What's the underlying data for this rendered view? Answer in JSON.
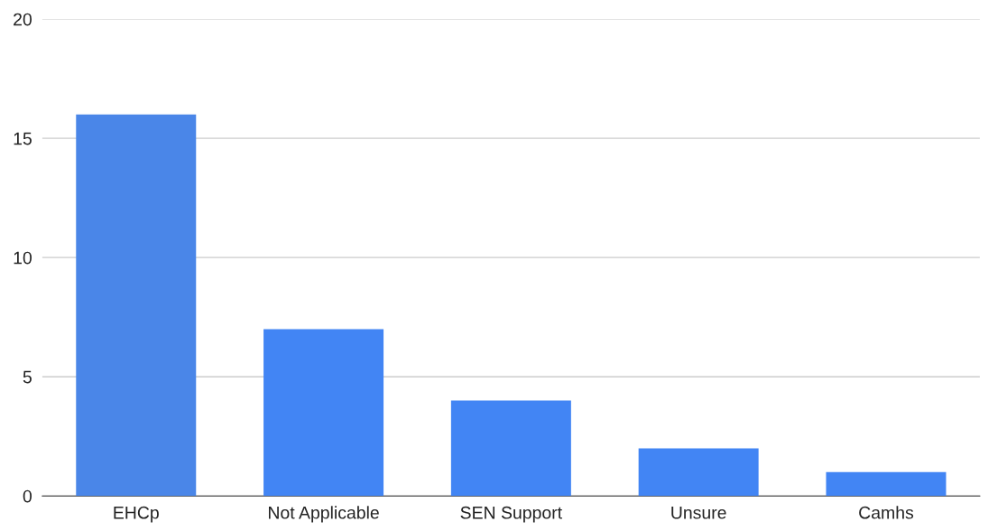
{
  "chart_data": {
    "type": "bar",
    "categories": [
      "EHCp",
      "Not Applicable",
      "SEN Support",
      "Unsure",
      "Camhs"
    ],
    "values": [
      16,
      7,
      4,
      2,
      1
    ],
    "colors": [
      "#4a86e8",
      "#4285f4",
      "#4285f4",
      "#4285f4",
      "#4285f4"
    ],
    "ylim": [
      0,
      20
    ],
    "yticks": [
      0,
      5,
      10,
      15,
      20
    ],
    "grid": "y"
  }
}
